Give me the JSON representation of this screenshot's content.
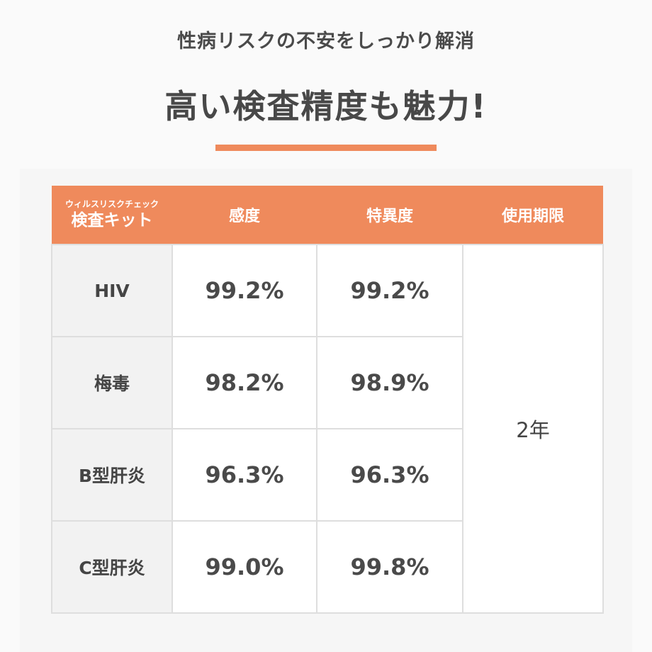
{
  "header": {
    "subtitle": "性病リスクの不安をしっかり解消",
    "title": "高い検査精度も魅力!"
  },
  "table": {
    "columns": {
      "kit_small": "ウィルスリスクチェック",
      "kit_big": "検査キット",
      "sensitivity": "感度",
      "specificity": "特異度",
      "expiry": "使用期限"
    },
    "rows": [
      {
        "label": "HIV",
        "sensitivity": "99.2%",
        "specificity": "99.2%"
      },
      {
        "label": "梅毒",
        "sensitivity": "98.2%",
        "specificity": "98.9%"
      },
      {
        "label": "B型肝炎",
        "sensitivity": "96.3%",
        "specificity": "96.3%"
      },
      {
        "label": "C型肝炎",
        "sensitivity": "99.0%",
        "specificity": "99.8%"
      }
    ],
    "expiry_value": "2年"
  },
  "colors": {
    "accent": "#ef8a5c",
    "text": "#4a4a4a",
    "row_header_bg": "#f2f2f2",
    "border": "#dedede"
  }
}
